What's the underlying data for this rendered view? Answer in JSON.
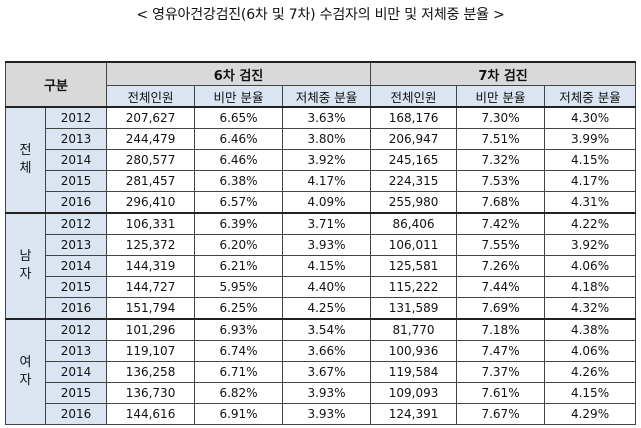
{
  "title": "< 영유아건강검진(6차 및 7차) 수검자의 비만 및 저체중 분율 >",
  "header": {
    "category": "구분",
    "group6": "6차 검진",
    "group7": "7차 검진",
    "columns": [
      "전체인원",
      "비만 분율",
      "저체중 분율",
      "전체인원",
      "비만 분율",
      "저체중 분율"
    ]
  },
  "groups": [
    {
      "label": [
        "전",
        "체"
      ],
      "rows": [
        {
          "year": "2012",
          "c6_total": "207,627",
          "c6_obese": "6.65%",
          "c6_under": "3.63%",
          "c7_total": "168,176",
          "c7_obese": "7.30%",
          "c7_under": "4.30%"
        },
        {
          "year": "2013",
          "c6_total": "244,479",
          "c6_obese": "6.46%",
          "c6_under": "3.80%",
          "c7_total": "206,947",
          "c7_obese": "7.51%",
          "c7_under": "3.99%"
        },
        {
          "year": "2014",
          "c6_total": "280,577",
          "c6_obese": "6.46%",
          "c6_under": "3.92%",
          "c7_total": "245,165",
          "c7_obese": "7.32%",
          "c7_under": "4.15%"
        },
        {
          "year": "2015",
          "c6_total": "281,457",
          "c6_obese": "6.38%",
          "c6_under": "4.17%",
          "c7_total": "224,315",
          "c7_obese": "7.53%",
          "c7_under": "4.17%"
        },
        {
          "year": "2016",
          "c6_total": "296,410",
          "c6_obese": "6.57%",
          "c6_under": "4.09%",
          "c7_total": "255,980",
          "c7_obese": "7.68%",
          "c7_under": "4.31%"
        }
      ]
    },
    {
      "label": [
        "남",
        "자"
      ],
      "rows": [
        {
          "year": "2012",
          "c6_total": "106,331",
          "c6_obese": "6.39%",
          "c6_under": "3.71%",
          "c7_total": "86,406",
          "c7_obese": "7.42%",
          "c7_under": "4.22%"
        },
        {
          "year": "2013",
          "c6_total": "125,372",
          "c6_obese": "6.20%",
          "c6_under": "3.93%",
          "c7_total": "106,011",
          "c7_obese": "7.55%",
          "c7_under": "3.92%"
        },
        {
          "year": "2014",
          "c6_total": "144,319",
          "c6_obese": "6.21%",
          "c6_under": "4.15%",
          "c7_total": "125,581",
          "c7_obese": "7.26%",
          "c7_under": "4.06%"
        },
        {
          "year": "2015",
          "c6_total": "144,727",
          "c6_obese": "5.95%",
          "c6_under": "4.40%",
          "c7_total": "115,222",
          "c7_obese": "7.44%",
          "c7_under": "4.18%"
        },
        {
          "year": "2016",
          "c6_total": "151,794",
          "c6_obese": "6.25%",
          "c6_under": "4.25%",
          "c7_total": "131,589",
          "c7_obese": "7.69%",
          "c7_under": "4.32%"
        }
      ]
    },
    {
      "label": [
        "여",
        "자"
      ],
      "rows": [
        {
          "year": "2012",
          "c6_total": "101,296",
          "c6_obese": "6.93%",
          "c6_under": "3.54%",
          "c7_total": "81,770",
          "c7_obese": "7.18%",
          "c7_under": "4.38%"
        },
        {
          "year": "2013",
          "c6_total": "119,107",
          "c6_obese": "6.74%",
          "c6_under": "3.66%",
          "c7_total": "100,936",
          "c7_obese": "7.47%",
          "c7_under": "4.06%"
        },
        {
          "year": "2014",
          "c6_total": "136,258",
          "c6_obese": "6.71%",
          "c6_under": "3.67%",
          "c7_total": "119,584",
          "c7_obese": "7.37%",
          "c7_under": "4.26%"
        },
        {
          "year": "2015",
          "c6_total": "136,730",
          "c6_obese": "6.82%",
          "c6_under": "3.93%",
          "c7_total": "109,093",
          "c7_obese": "7.61%",
          "c7_under": "4.15%"
        },
        {
          "year": "2016",
          "c6_total": "144,616",
          "c6_obese": "6.91%",
          "c6_under": "3.93%",
          "c7_total": "124,391",
          "c7_obese": "7.67%",
          "c7_under": "4.29%"
        }
      ]
    }
  ]
}
